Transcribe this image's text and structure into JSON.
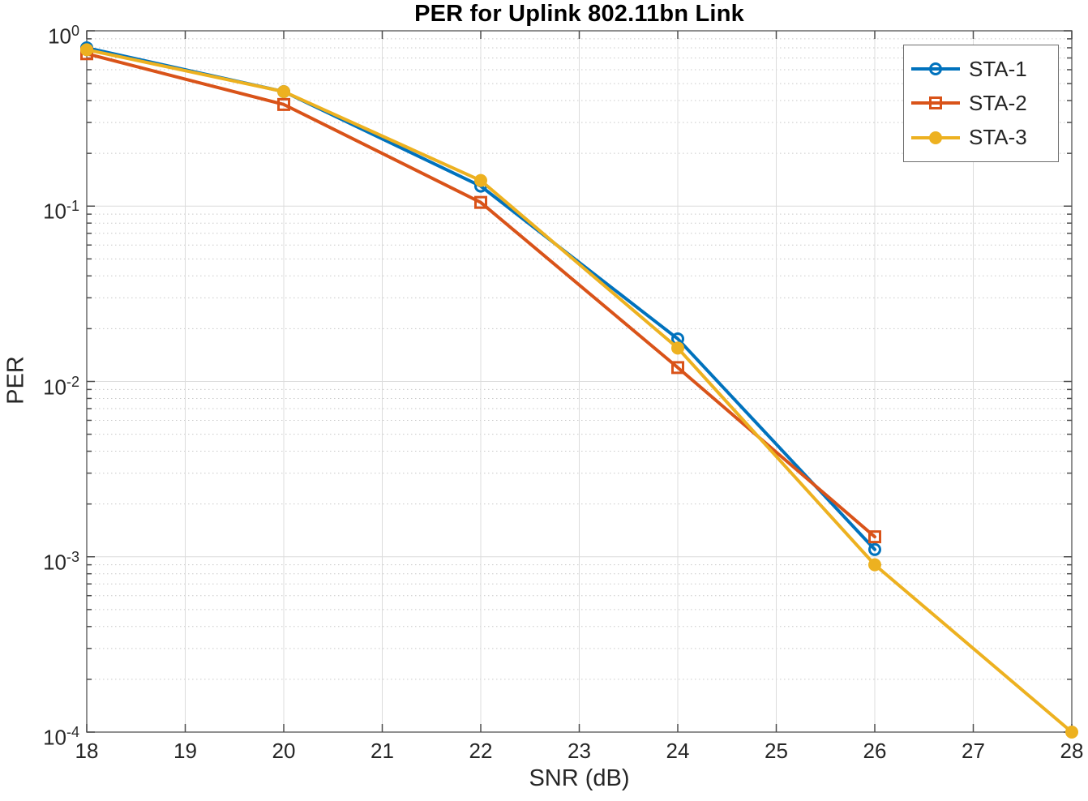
{
  "chart_data": {
    "type": "line",
    "title": "PER for Uplink 802.11bn Link",
    "xlabel": "SNR (dB)",
    "ylabel": "PER",
    "xlim": [
      18,
      28
    ],
    "xticks": [
      18,
      19,
      20,
      21,
      22,
      23,
      24,
      25,
      26,
      27,
      28
    ],
    "yscale": "log",
    "ylim_exp": [
      -4,
      0
    ],
    "ytick_exponents": [
      0,
      -1,
      -2,
      -3,
      -4
    ],
    "grid": "on",
    "minor_grid": "on",
    "legend_position": "top-right-inside",
    "series": [
      {
        "name": "STA-1",
        "color": "#0072BD",
        "marker": "circle-open",
        "x": [
          18,
          20,
          22,
          24,
          26
        ],
        "y": [
          0.8,
          0.45,
          0.13,
          0.0175,
          0.0011
        ]
      },
      {
        "name": "STA-2",
        "color": "#D95319",
        "marker": "square-open",
        "x": [
          18,
          20,
          22,
          24,
          26
        ],
        "y": [
          0.74,
          0.38,
          0.105,
          0.012,
          0.0013
        ]
      },
      {
        "name": "STA-3",
        "color": "#EDB120",
        "marker": "circle-filled",
        "x": [
          18,
          20,
          22,
          24,
          26,
          28
        ],
        "y": [
          0.78,
          0.45,
          0.14,
          0.0155,
          0.0009,
          0.0001
        ]
      }
    ],
    "colors": {
      "axis_box": "#6b6b6b",
      "tick_mark": "#4d4d4d",
      "grid_major": "#dcdcdc",
      "grid_minor": "#c9c9c9",
      "label_text": "#262626",
      "title_text": "#000000",
      "background": "#ffffff"
    }
  }
}
